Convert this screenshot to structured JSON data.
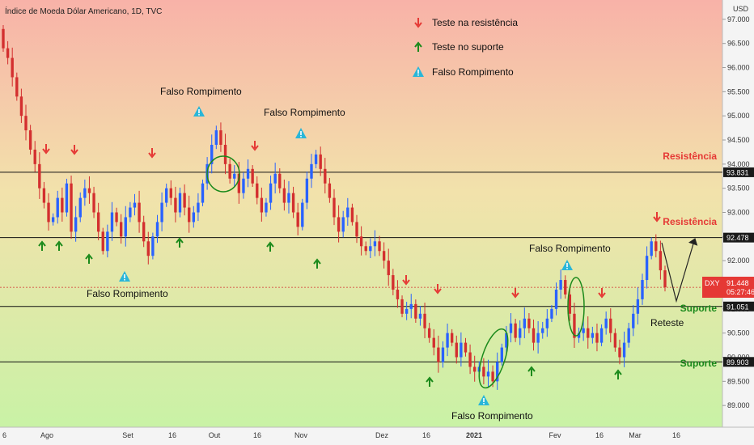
{
  "title": "Índice de Moeda Dólar Americano, 1D, TVC",
  "currency": "USD",
  "colors": {
    "up": "#2962ff",
    "down": "#d32f2f",
    "resistance": "#e53935",
    "support": "#1b8a1b",
    "falso": "#29b6d8",
    "bg_top": "#f8b2a8",
    "bg_mid": "#f2e2ab",
    "bg_bottom": "#c9f2a6",
    "line": "#111111"
  },
  "legend": [
    {
      "icon": "red-down-arrow-icon",
      "label": "Teste na resistência"
    },
    {
      "icon": "green-up-arrow-icon",
      "label": "Teste no suporte"
    },
    {
      "icon": "warning-triangle-icon",
      "label": "Falso Rompimento"
    }
  ],
  "chart_data": {
    "type": "candlestick",
    "ylim": [
      88.55,
      97.4
    ],
    "y_ticks": [
      "97.000",
      "96.500",
      "96.000",
      "95.500",
      "95.000",
      "94.500",
      "94.000",
      "93.500",
      "93.000",
      "92.500",
      "92.000",
      "91.500",
      "91.000",
      "90.500",
      "90.000",
      "89.500",
      "89.000"
    ],
    "x_ticks": [
      "6",
      "Ago",
      "Set",
      "16",
      "Out",
      "16",
      "Nov",
      "Dez",
      "16",
      "2021",
      "Fev",
      "16",
      "Mar",
      "16"
    ],
    "levels": [
      {
        "value": 93.831,
        "label": "93.831",
        "name": "Resistência",
        "kind": "resistance"
      },
      {
        "value": 92.478,
        "label": "92.478",
        "name": "Resistência",
        "kind": "resistance"
      },
      {
        "value": 91.051,
        "label": "91.051",
        "name": "Suporte",
        "kind": "support"
      },
      {
        "value": 89.903,
        "label": "89.903",
        "name": "Suporte",
        "kind": "support"
      }
    ],
    "current": {
      "symbol": "DXY",
      "price": "91.448",
      "timer": "05:27:46",
      "value": 91.448
    },
    "closes": [
      96.4,
      96.2,
      95.8,
      95.4,
      95.0,
      94.7,
      94.3,
      94.0,
      93.5,
      93.2,
      92.8,
      92.9,
      93.3,
      93.0,
      93.6,
      92.6,
      92.9,
      93.3,
      93.5,
      93.4,
      93.0,
      92.6,
      92.2,
      92.6,
      93.0,
      92.8,
      92.5,
      92.9,
      93.1,
      93.2,
      92.8,
      92.4,
      92.1,
      92.5,
      92.8,
      93.2,
      93.5,
      93.3,
      93.0,
      93.4,
      93.1,
      92.8,
      93.0,
      93.2,
      93.6,
      94.0,
      94.4,
      94.7,
      94.4,
      94.0,
      93.7,
      93.8,
      93.4,
      93.7,
      93.9,
      93.6,
      93.3,
      93.0,
      93.2,
      93.6,
      93.8,
      93.5,
      93.2,
      93.4,
      93.0,
      92.7,
      93.2,
      93.7,
      94.0,
      94.2,
      93.9,
      93.6,
      93.3,
      92.9,
      92.6,
      92.9,
      93.1,
      92.8,
      92.5,
      92.3,
      92.2,
      92.3,
      92.4,
      92.2,
      92.0,
      91.7,
      91.4,
      91.2,
      90.9,
      91.0,
      91.1,
      90.8,
      90.9,
      90.6,
      90.4,
      90.2,
      89.9,
      90.2,
      90.5,
      90.3,
      90.0,
      90.3,
      90.1,
      89.8,
      89.7,
      89.8,
      89.6,
      89.7,
      89.5,
      89.9,
      90.2,
      90.5,
      90.7,
      90.4,
      90.6,
      90.8,
      90.6,
      90.3,
      90.5,
      90.6,
      90.8,
      91.0,
      91.4,
      91.6,
      91.3,
      90.9,
      90.4,
      90.5,
      90.6,
      90.4,
      90.5,
      90.3,
      90.6,
      90.8,
      90.5,
      90.2,
      90.0,
      90.3,
      90.6,
      90.9,
      91.2,
      91.6,
      92.1,
      92.4,
      92.2,
      91.8,
      91.45
    ]
  },
  "annotations": {
    "falso_rompimento": "Falso Rompimento",
    "reteste": "Reteste"
  }
}
